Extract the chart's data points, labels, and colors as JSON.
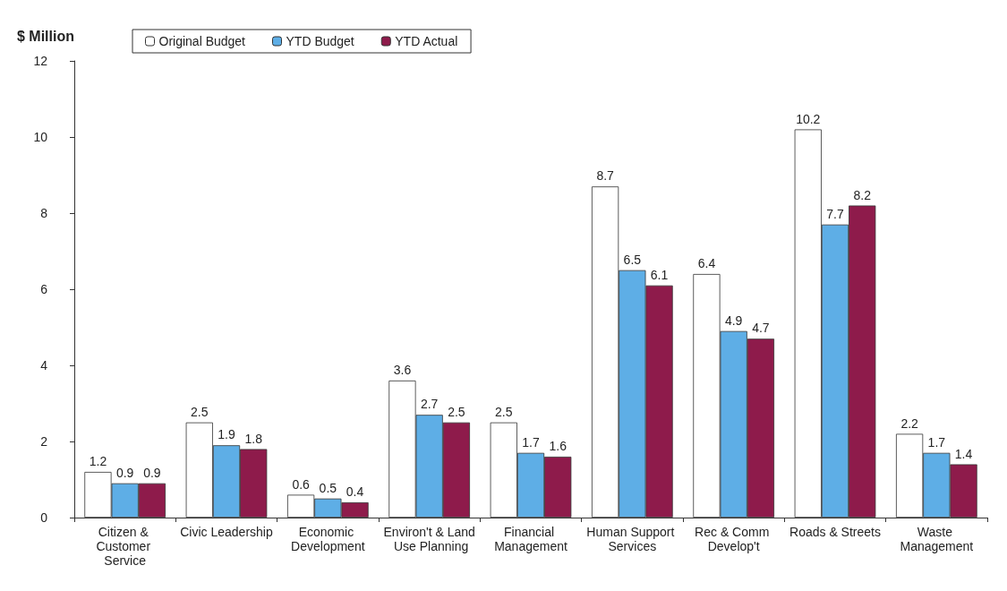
{
  "chart_data": {
    "type": "bar",
    "ylabel": "$ Million",
    "categories": [
      "Citizen & Customer Service",
      "Civic Leadership",
      "Economic Development",
      "Environ't & Land Use Planning",
      "Financial Management",
      "Human Support Services",
      "Rec & Comm Develop't",
      "Roads & Streets",
      "Waste Management"
    ],
    "series": [
      {
        "name": "Original Budget",
        "color": "#ffffff",
        "values": [
          1.2,
          2.5,
          0.6,
          3.6,
          2.5,
          8.7,
          6.4,
          10.2,
          2.2
        ]
      },
      {
        "name": "YTD Budget",
        "color": "#5eaee6",
        "values": [
          0.9,
          1.9,
          0.5,
          2.7,
          1.7,
          6.5,
          4.9,
          7.7,
          1.7
        ]
      },
      {
        "name": "YTD Actual",
        "color": "#8e1b4b",
        "values": [
          0.9,
          1.8,
          0.4,
          2.5,
          1.6,
          6.1,
          4.7,
          8.2,
          1.4
        ]
      }
    ],
    "ylim": [
      0,
      12
    ],
    "yticks": [
      0,
      2,
      4,
      6,
      8,
      10,
      12
    ],
    "grid": false,
    "legend": "top left",
    "data_labels": true
  }
}
